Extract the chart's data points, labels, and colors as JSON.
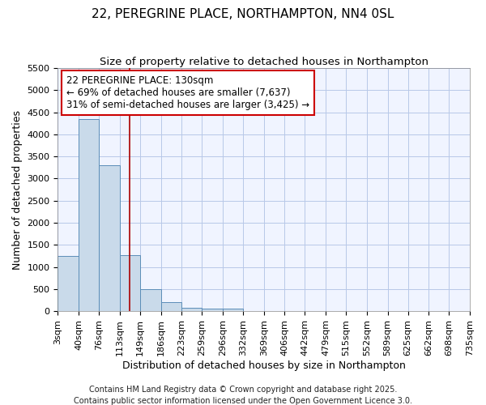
{
  "title": "22, PEREGRINE PLACE, NORTHAMPTON, NN4 0SL",
  "subtitle": "Size of property relative to detached houses in Northampton",
  "xlabel": "Distribution of detached houses by size in Northampton",
  "ylabel": "Number of detached properties",
  "bins": [
    "3sqm",
    "40sqm",
    "76sqm",
    "113sqm",
    "149sqm",
    "186sqm",
    "223sqm",
    "259sqm",
    "296sqm",
    "332sqm",
    "369sqm",
    "406sqm",
    "442sqm",
    "479sqm",
    "515sqm",
    "552sqm",
    "589sqm",
    "625sqm",
    "662sqm",
    "698sqm",
    "735sqm"
  ],
  "bin_edges": [
    3,
    40,
    76,
    113,
    149,
    186,
    223,
    259,
    296,
    332,
    369,
    406,
    442,
    479,
    515,
    552,
    589,
    625,
    662,
    698,
    735
  ],
  "bar_heights": [
    1250,
    4350,
    3300,
    1270,
    490,
    210,
    80,
    55,
    50,
    0,
    0,
    0,
    0,
    0,
    0,
    0,
    0,
    0,
    0,
    0
  ],
  "bar_color": "#c9daea",
  "bar_edge_color": "#5b8db8",
  "ylim": [
    0,
    5500
  ],
  "yticks": [
    0,
    500,
    1000,
    1500,
    2000,
    2500,
    3000,
    3500,
    4000,
    4500,
    5000,
    5500
  ],
  "property_line_x": 130,
  "property_line_color": "#aa0000",
  "annotation_line1": "22 PEREGRINE PLACE: 130sqm",
  "annotation_line2": "← 69% of detached houses are smaller (7,637)",
  "annotation_line3": "31% of semi-detached houses are larger (3,425) →",
  "annotation_box_color": "#cc0000",
  "footer1": "Contains HM Land Registry data © Crown copyright and database right 2025.",
  "footer2": "Contains public sector information licensed under the Open Government Licence 3.0.",
  "fig_bg_color": "#ffffff",
  "plot_bg_color": "#f0f4ff",
  "title_fontsize": 11,
  "subtitle_fontsize": 9.5,
  "xlabel_fontsize": 9,
  "ylabel_fontsize": 9,
  "tick_fontsize": 8,
  "footer_fontsize": 7,
  "annotation_fontsize": 8.5
}
